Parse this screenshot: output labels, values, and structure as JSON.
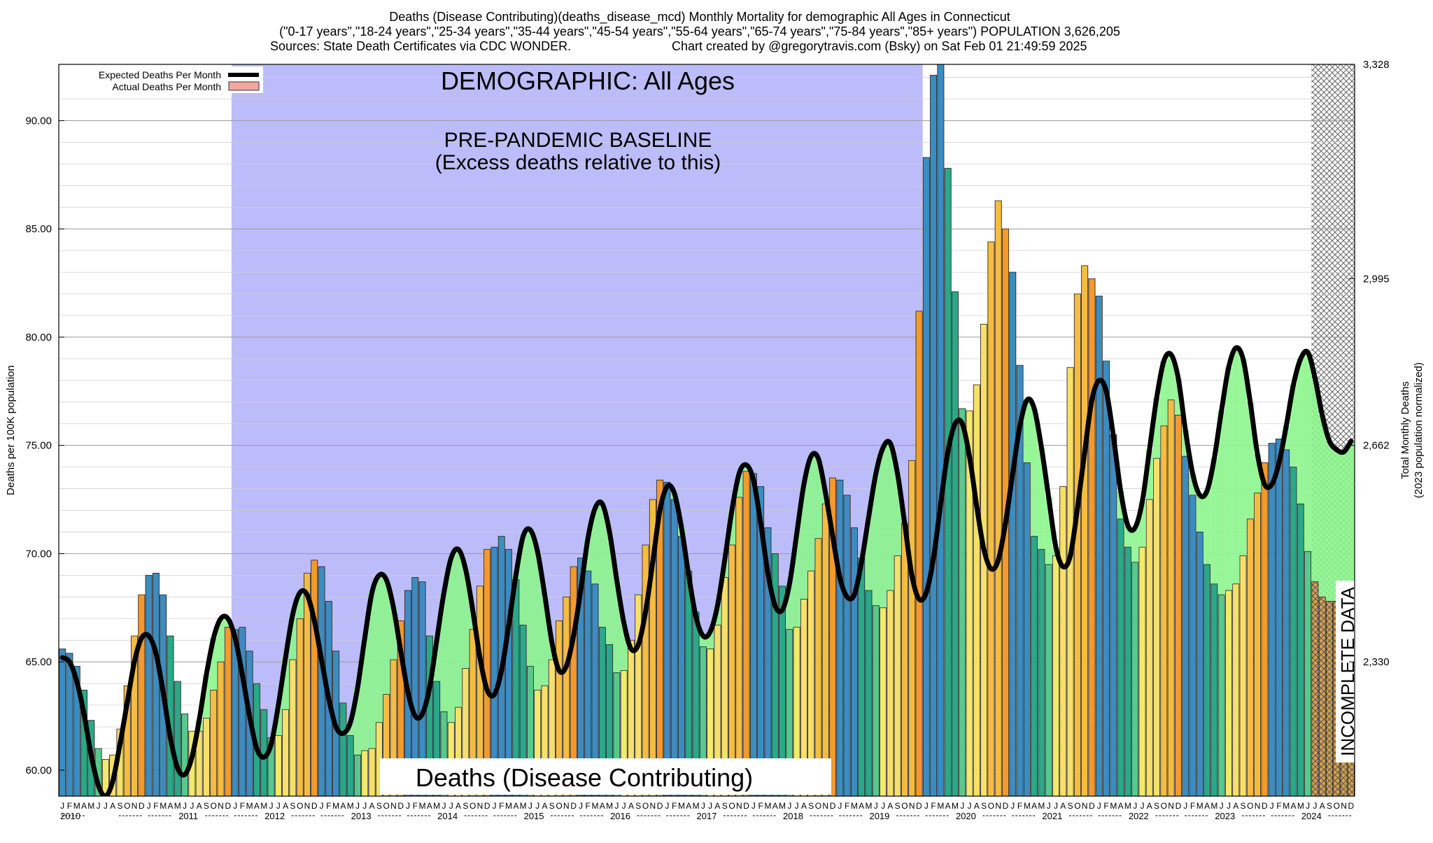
{
  "header": {
    "line1": "Deaths (Disease Contributing)(deaths_disease_mcd) Monthly Mortality for demographic All Ages in Connecticut",
    "line2": "(\"0-17 years\",\"18-24 years\",\"25-34 years\",\"35-44 years\",\"45-54 years\",\"55-64 years\",\"65-74 years\",\"75-84 years\",\"85+ years\") POPULATION 3,626,205",
    "line3_left": "Sources: State Death Certificates via CDC WONDER.",
    "line3_right": "Chart created by @gregorytravis.com (Bsky) on Sat Feb 01 21:49:59 2025"
  },
  "chart_data": {
    "type": "bar",
    "title": "DEMOGRAPHIC: All Ages",
    "baseline_title": "PRE-PANDEMIC BASELINE",
    "baseline_subtitle": "(Excess deaths relative to this)",
    "banner": "Deaths (Disease Contributing)",
    "incomplete_label": "INCOMPLETE DATA",
    "ylabel": "Deaths per 100K population",
    "y2label_line1": "Total Monthly Deaths",
    "y2label_line2": "(2023 population normalized)",
    "ylim": [
      58.8,
      92.6
    ],
    "y_ticks": [
      "60.00",
      "65.00",
      "70.00",
      "75.00",
      "80.00",
      "85.00",
      "90.00"
    ],
    "y2_ticks": [
      "2,330",
      "2,662",
      "2,995",
      "3,328"
    ],
    "grid": "horizontal",
    "legend": [
      {
        "name": "Expected Deaths Per Month",
        "color": "#000000"
      },
      {
        "name": "Actual Deaths Per Month",
        "color": "#f4a6a0"
      }
    ],
    "legend_position": "top-left",
    "month_letters": [
      "J",
      "F",
      "M",
      "A",
      "M",
      "J",
      "J",
      "A",
      "S",
      "O",
      "N",
      "D"
    ],
    "years": [
      "2010",
      "2011",
      "2012",
      "2013",
      "2014",
      "2015",
      "2016",
      "2017",
      "2018",
      "2019",
      "2020",
      "2021",
      "2022",
      "2023",
      "2024"
    ],
    "baseline_period": [
      "2012-01",
      "2019-12"
    ],
    "incomplete_period": [
      "2024-07",
      "2024-12"
    ],
    "actual": [
      65.6,
      65.4,
      64.8,
      63.7,
      62.3,
      61.0,
      60.5,
      60.7,
      61.9,
      63.9,
      66.2,
      68.1,
      69.0,
      69.1,
      68.1,
      66.2,
      64.1,
      62.6,
      61.8,
      61.8,
      62.4,
      63.7,
      65.0,
      66.6,
      66.5,
      66.6,
      65.5,
      64.0,
      62.8,
      61.5,
      61.6,
      62.8,
      65.1,
      67.0,
      69.1,
      69.7,
      69.4,
      67.8,
      65.5,
      63.1,
      61.6,
      60.7,
      60.9,
      61.0,
      62.2,
      63.5,
      65.1,
      66.9,
      68.3,
      68.9,
      68.7,
      66.2,
      64.1,
      62.7,
      62.2,
      62.9,
      64.7,
      66.5,
      68.5,
      70.2,
      70.3,
      70.8,
      70.2,
      68.8,
      66.7,
      64.8,
      63.7,
      63.9,
      65.1,
      66.9,
      68.0,
      69.4,
      69.8,
      69.2,
      68.6,
      66.6,
      65.8,
      64.5,
      64.6,
      66.0,
      68.1,
      70.4,
      72.5,
      73.4,
      73.3,
      72.5,
      70.8,
      69.2,
      67.3,
      65.7,
      65.6,
      66.7,
      68.9,
      70.4,
      72.6,
      73.8,
      73.7,
      73.1,
      71.2,
      70.0,
      68.5,
      66.5,
      66.6,
      67.9,
      69.2,
      70.7,
      72.3,
      73.5,
      73.4,
      72.7,
      71.2,
      69.8,
      68.3,
      67.6,
      67.5,
      68.3,
      69.9,
      71.4,
      74.3,
      81.2,
      88.3,
      92.1,
      92.8,
      87.8,
      82.1,
      76.7,
      76.6,
      77.8,
      80.6,
      84.4,
      86.3,
      85.0,
      83.0,
      78.7,
      74.2,
      70.8,
      70.2,
      69.5,
      69.9,
      73.1,
      78.6,
      82.0,
      83.3,
      82.7,
      81.9,
      78.9,
      75.5,
      71.6,
      70.3,
      69.6,
      70.3,
      72.5,
      74.4,
      75.9,
      77.1,
      76.4,
      74.5,
      72.7,
      71.0,
      69.5,
      68.6,
      68.1,
      68.3,
      68.6,
      69.9,
      71.6,
      72.8,
      74.2,
      75.1,
      75.3,
      74.8,
      74.0,
      72.3,
      70.1,
      68.7,
      68.0,
      67.8,
      67.8,
      67.9,
      67.9
    ],
    "expected": [
      65.2,
      65.0,
      64.1,
      62.6,
      60.7,
      59.3,
      58.8,
      59.5,
      61.2,
      63.1,
      65.0,
      66.1,
      66.2,
      65.4,
      63.6,
      61.5,
      60.1,
      59.8,
      60.6,
      62.3,
      64.4,
      66.1,
      67.0,
      67.0,
      66.1,
      64.4,
      62.5,
      61.0,
      60.6,
      61.2,
      63.0,
      65.2,
      67.2,
      68.2,
      68.1,
      66.9,
      65.1,
      63.3,
      62.0,
      61.7,
      62.2,
      63.8,
      66.1,
      68.2,
      69.0,
      68.8,
      67.5,
      65.5,
      63.6,
      62.5,
      62.6,
      63.8,
      66.0,
      68.2,
      69.8,
      70.2,
      69.3,
      67.4,
      65.2,
      63.7,
      63.5,
      64.6,
      66.7,
      69.0,
      70.8,
      71.1,
      70.1,
      68.1,
      65.9,
      64.6,
      64.8,
      66.2,
      68.3,
      70.7,
      72.1,
      72.3,
      71.0,
      68.8,
      66.8,
      65.6,
      65.8,
      67.3,
      69.6,
      72.0,
      73.1,
      72.8,
      71.2,
      69.0,
      67.1,
      66.2,
      66.4,
      67.6,
      69.7,
      72.0,
      73.7,
      74.1,
      73.4,
      71.4,
      69.1,
      67.6,
      67.4,
      68.6,
      70.9,
      73.2,
      74.5,
      74.4,
      72.8,
      70.8,
      68.9,
      68.0,
      68.1,
      69.6,
      71.7,
      73.7,
      74.9,
      75.1,
      73.7,
      71.4,
      69.0,
      67.9,
      68.2,
      69.8,
      72.3,
      74.7,
      76.0,
      76.0,
      74.5,
      72.2,
      70.2,
      69.3,
      69.7,
      71.4,
      73.7,
      75.9,
      77.1,
      76.7,
      74.9,
      72.6,
      70.3,
      69.4,
      69.9,
      72.1,
      74.7,
      77.1,
      78.0,
      77.5,
      75.4,
      72.9,
      71.3,
      71.2,
      72.4,
      74.8,
      77.2,
      78.9,
      79.2,
      78.1,
      75.7,
      73.7,
      72.7,
      72.9,
      74.4,
      76.6,
      78.6,
      79.5,
      79.0,
      77.0,
      74.6,
      73.2,
      73.2,
      74.2,
      75.9,
      77.8,
      79.0,
      79.3,
      78.1,
      76.4,
      75.2,
      74.8,
      74.7,
      75.2
    ],
    "bar_colors": {
      "winter_blue": "#3c8cc0",
      "spring_teal": "#2aa887",
      "spring_green": "#57c98c",
      "summer_yellow": "#f3e96a",
      "summer_light": "#f7e06a",
      "fall_amber": "#f4bd42",
      "fall_orange": "#f29a2e",
      "excess_red": "#f4a6a0",
      "excess_green": "#8cf58c",
      "baseline_blue": "#bcbcfa"
    }
  }
}
